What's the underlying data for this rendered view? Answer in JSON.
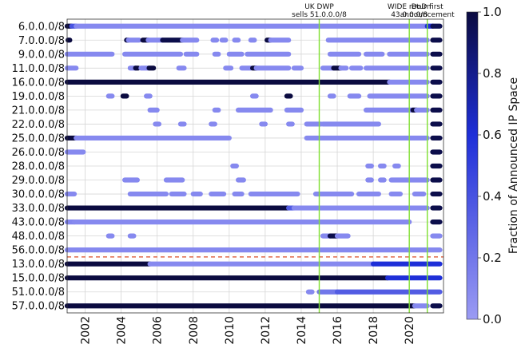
{
  "chart_data": {
    "type": "scatter",
    "title": "",
    "xlabel": "",
    "ylabel": "",
    "xlim": [
      2001.0,
      2021.9
    ],
    "x_ticks": [
      "2002",
      "2004",
      "2006",
      "2008",
      "2010",
      "2012",
      "2014",
      "2016",
      "2018",
      "2020"
    ],
    "grid": true,
    "events": [
      {
        "lines": [
          "UK DWP",
          "sells 51.0.0.0/8"
        ],
        "x": 2015.0,
        "color": "#7fe030"
      },
      {
        "lines": [
          "WIDE return",
          "43.0.0.0/8"
        ],
        "x": 2020.0,
        "color": "#7fe030"
      },
      {
        "lines": [
          "DoD first",
          "announcement"
        ],
        "x": 2021.0,
        "color": "#7fe030"
      }
    ],
    "separator": {
      "after_row": "56.0.0.0/8",
      "style": "dashed",
      "color": "#e06a4a"
    },
    "colorbar": {
      "label": "Fraction of Announced IP Space",
      "min": 0.0,
      "max": 1.0,
      "ticks": [
        "0.0",
        "0.2",
        "0.4",
        "0.6",
        "0.8",
        "1.0"
      ],
      "low_color": "#9b9bf3",
      "mid_color": "#1e2fd8",
      "high_color": "#0b0b40"
    },
    "rows": [
      {
        "label": "6.0.0.0/8",
        "segments": [
          [
            2001.0,
            2001.25,
            1.0
          ],
          [
            2001.25,
            2001.5,
            0.4
          ],
          [
            2001.5,
            2021.0,
            0.1
          ],
          [
            2021.0,
            2021.3,
            0.6
          ],
          [
            2021.3,
            2021.7,
            0.95
          ]
        ]
      },
      {
        "label": "7.0.0.0/8",
        "segments": [
          [
            2001.05,
            2001.15,
            1.0
          ],
          [
            2004.3,
            2004.4,
            1.0
          ],
          [
            2004.4,
            2005.0,
            0.1
          ],
          [
            2005.2,
            2005.5,
            1.0
          ],
          [
            2005.5,
            2006.3,
            0.1
          ],
          [
            2006.3,
            2007.4,
            0.97
          ],
          [
            2007.4,
            2008.2,
            0.1
          ],
          [
            2009.1,
            2009.3,
            0.1
          ],
          [
            2009.6,
            2009.8,
            0.1
          ],
          [
            2010.3,
            2010.5,
            0.1
          ],
          [
            2011.2,
            2011.4,
            0.1
          ],
          [
            2012.1,
            2012.3,
            1.0
          ],
          [
            2012.3,
            2013.3,
            0.1
          ],
          [
            2015.5,
            2021.0,
            0.1
          ],
          [
            2021.3,
            2021.7,
            0.97
          ]
        ]
      },
      {
        "label": "9.0.0.0/8",
        "segments": [
          [
            2001.0,
            2003.5,
            0.1
          ],
          [
            2004.2,
            2007.3,
            0.1
          ],
          [
            2007.6,
            2008.2,
            0.1
          ],
          [
            2009.2,
            2009.4,
            0.1
          ],
          [
            2010.0,
            2010.7,
            0.1
          ],
          [
            2011.0,
            2013.3,
            0.1
          ],
          [
            2015.6,
            2017.2,
            0.1
          ],
          [
            2017.6,
            2018.5,
            0.1
          ],
          [
            2018.9,
            2021.0,
            0.1
          ],
          [
            2021.3,
            2021.7,
            0.97
          ]
        ]
      },
      {
        "label": "11.0.0.0/8",
        "segments": [
          [
            2001.0,
            2001.5,
            0.1
          ],
          [
            2004.5,
            2004.8,
            0.1
          ],
          [
            2004.8,
            2004.95,
            1.0
          ],
          [
            2005.1,
            2005.5,
            0.1
          ],
          [
            2005.55,
            2005.8,
            1.0
          ],
          [
            2007.2,
            2007.5,
            0.1
          ],
          [
            2009.8,
            2010.1,
            0.1
          ],
          [
            2010.7,
            2011.2,
            0.1
          ],
          [
            2011.3,
            2011.5,
            1.0
          ],
          [
            2011.5,
            2013.3,
            0.1
          ],
          [
            2013.6,
            2014.0,
            0.1
          ],
          [
            2015.2,
            2015.8,
            0.1
          ],
          [
            2015.8,
            2016.2,
            1.0
          ],
          [
            2016.2,
            2016.5,
            0.1
          ],
          [
            2016.8,
            2017.3,
            0.1
          ],
          [
            2017.6,
            2021.0,
            0.1
          ],
          [
            2021.3,
            2021.7,
            0.97
          ]
        ]
      },
      {
        "label": "16.0.0.0/8",
        "segments": [
          [
            2001.0,
            2018.9,
            1.0
          ],
          [
            2018.9,
            2021.0,
            0.1
          ],
          [
            2021.3,
            2021.7,
            0.97
          ]
        ]
      },
      {
        "label": "19.0.0.0/8",
        "segments": [
          [
            2003.3,
            2003.5,
            0.1
          ],
          [
            2004.1,
            2004.3,
            1.0
          ],
          [
            2005.4,
            2005.6,
            0.1
          ],
          [
            2011.3,
            2011.5,
            0.1
          ],
          [
            2013.2,
            2013.4,
            1.0
          ],
          [
            2015.6,
            2015.8,
            0.1
          ],
          [
            2016.7,
            2017.2,
            0.1
          ],
          [
            2017.8,
            2021.0,
            0.1
          ],
          [
            2021.3,
            2021.7,
            0.97
          ]
        ]
      },
      {
        "label": "21.0.0.0/8",
        "segments": [
          [
            2005.6,
            2006.0,
            0.1
          ],
          [
            2009.2,
            2009.4,
            0.1
          ],
          [
            2010.5,
            2012.3,
            0.1
          ],
          [
            2013.2,
            2014.0,
            0.1
          ],
          [
            2017.6,
            2020.2,
            0.1
          ],
          [
            2020.2,
            2020.4,
            1.0
          ],
          [
            2020.4,
            2021.0,
            0.1
          ],
          [
            2021.3,
            2021.7,
            0.97
          ]
        ]
      },
      {
        "label": "22.0.0.0/8",
        "segments": [
          [
            2005.9,
            2006.1,
            0.1
          ],
          [
            2007.3,
            2007.5,
            0.1
          ],
          [
            2009.0,
            2009.2,
            0.1
          ],
          [
            2011.8,
            2012.0,
            0.1
          ],
          [
            2013.3,
            2013.5,
            0.1
          ],
          [
            2014.3,
            2015.1,
            0.1
          ],
          [
            2015.2,
            2018.3,
            0.1
          ],
          [
            2021.3,
            2021.7,
            0.97
          ]
        ]
      },
      {
        "label": "25.0.0.0/8",
        "segments": [
          [
            2001.0,
            2001.5,
            1.0
          ],
          [
            2001.5,
            2010.0,
            0.1
          ],
          [
            2014.3,
            2021.0,
            0.1
          ],
          [
            2021.3,
            2021.7,
            0.97
          ]
        ]
      },
      {
        "label": "26.0.0.0/8",
        "segments": [
          [
            2001.0,
            2001.9,
            0.1
          ],
          [
            2021.3,
            2021.7,
            0.97
          ]
        ]
      },
      {
        "label": "28.0.0.0/8",
        "segments": [
          [
            2010.2,
            2010.4,
            0.1
          ],
          [
            2017.7,
            2017.9,
            0.1
          ],
          [
            2018.4,
            2018.6,
            0.1
          ],
          [
            2019.2,
            2019.4,
            0.1
          ],
          [
            2021.3,
            2021.7,
            0.97
          ]
        ]
      },
      {
        "label": "29.0.0.0/8",
        "segments": [
          [
            2004.2,
            2004.9,
            0.1
          ],
          [
            2006.5,
            2007.4,
            0.1
          ],
          [
            2010.5,
            2010.8,
            0.1
          ],
          [
            2017.7,
            2017.9,
            0.1
          ],
          [
            2018.4,
            2018.6,
            0.1
          ],
          [
            2019.0,
            2021.0,
            0.1
          ],
          [
            2021.3,
            2021.7,
            0.97
          ]
        ]
      },
      {
        "label": "30.0.0.0/8",
        "segments": [
          [
            2001.0,
            2001.4,
            0.1
          ],
          [
            2004.5,
            2006.5,
            0.1
          ],
          [
            2006.8,
            2007.5,
            0.1
          ],
          [
            2008.0,
            2008.4,
            0.1
          ],
          [
            2009.0,
            2009.7,
            0.1
          ],
          [
            2010.3,
            2010.7,
            0.1
          ],
          [
            2011.2,
            2013.8,
            0.1
          ],
          [
            2014.8,
            2016.8,
            0.1
          ],
          [
            2017.2,
            2018.3,
            0.1
          ],
          [
            2019.0,
            2019.5,
            0.1
          ],
          [
            2020.3,
            2020.8,
            0.1
          ],
          [
            2021.3,
            2021.7,
            0.97
          ]
        ]
      },
      {
        "label": "33.0.0.0/8",
        "segments": [
          [
            2001.0,
            2013.3,
            1.0
          ],
          [
            2013.3,
            2013.6,
            0.35
          ],
          [
            2013.6,
            2021.0,
            0.1
          ],
          [
            2021.3,
            2021.7,
            0.97
          ]
        ]
      },
      {
        "label": "43.0.0.0/8",
        "segments": [
          [
            2001.0,
            2001.4,
            0.12
          ],
          [
            2001.4,
            2020.0,
            0.1
          ],
          [
            2021.3,
            2021.7,
            0.97
          ]
        ]
      },
      {
        "label": "48.0.0.0/8",
        "segments": [
          [
            2003.3,
            2003.5,
            0.1
          ],
          [
            2004.5,
            2004.7,
            0.1
          ],
          [
            2015.2,
            2015.6,
            0.1
          ],
          [
            2015.6,
            2016.0,
            0.97
          ],
          [
            2016.0,
            2016.6,
            0.1
          ],
          [
            2021.3,
            2021.7,
            0.1
          ]
        ]
      },
      {
        "label": "56.0.0.0/8",
        "segments": [
          [
            2001.0,
            2021.7,
            0.1
          ]
        ]
      },
      {
        "label": "13.0.0.0/8",
        "segments": [
          [
            2001.0,
            2005.6,
            1.0
          ],
          [
            2005.6,
            2018.0,
            0.1
          ],
          [
            2018.0,
            2021.7,
            0.6
          ]
        ]
      },
      {
        "label": "15.0.0.0/8",
        "segments": [
          [
            2001.0,
            2018.8,
            1.0
          ],
          [
            2018.8,
            2021.7,
            0.6
          ]
        ]
      },
      {
        "label": "51.0.0.0/8",
        "segments": [
          [
            2014.4,
            2014.6,
            0.1
          ],
          [
            2015.0,
            2016.0,
            0.2
          ],
          [
            2016.0,
            2021.7,
            0.35
          ]
        ]
      },
      {
        "label": "57.0.0.0/8",
        "segments": [
          [
            2001.0,
            2020.3,
            1.0
          ],
          [
            2020.3,
            2021.0,
            0.1
          ],
          [
            2021.3,
            2021.7,
            0.97
          ]
        ]
      }
    ]
  }
}
